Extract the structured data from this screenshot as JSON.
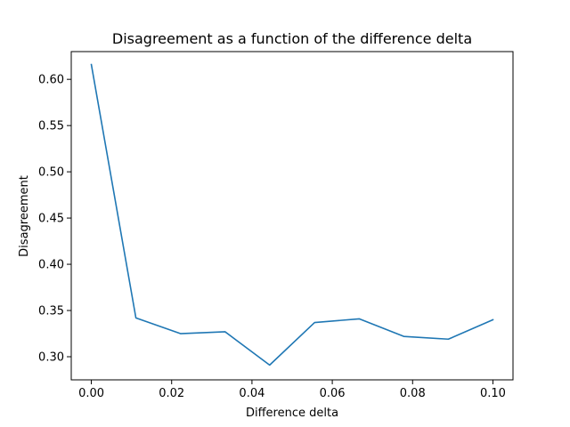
{
  "chart_data": {
    "type": "line",
    "title": "Disagreement as a function of the difference delta",
    "xlabel": "Difference delta",
    "ylabel": "Disagreement",
    "xlim": [
      -0.005,
      0.105
    ],
    "ylim": [
      0.275,
      0.63
    ],
    "xticks": [
      0.0,
      0.02,
      0.04,
      0.06,
      0.08,
      0.1
    ],
    "xtick_labels": [
      "0.00",
      "0.02",
      "0.04",
      "0.06",
      "0.08",
      "0.10"
    ],
    "yticks": [
      0.3,
      0.35,
      0.4,
      0.45,
      0.5,
      0.55,
      0.6
    ],
    "ytick_labels": [
      "0.30",
      "0.35",
      "0.40",
      "0.45",
      "0.50",
      "0.55",
      "0.60"
    ],
    "grid": false,
    "series": [
      {
        "color": "#1f77b4",
        "x": [
          0.0,
          0.0111,
          0.0222,
          0.0333,
          0.0444,
          0.0556,
          0.0667,
          0.0778,
          0.0889,
          0.1
        ],
        "y": [
          0.616,
          0.342,
          0.325,
          0.327,
          0.291,
          0.337,
          0.341,
          0.322,
          0.319,
          0.34
        ]
      }
    ]
  }
}
